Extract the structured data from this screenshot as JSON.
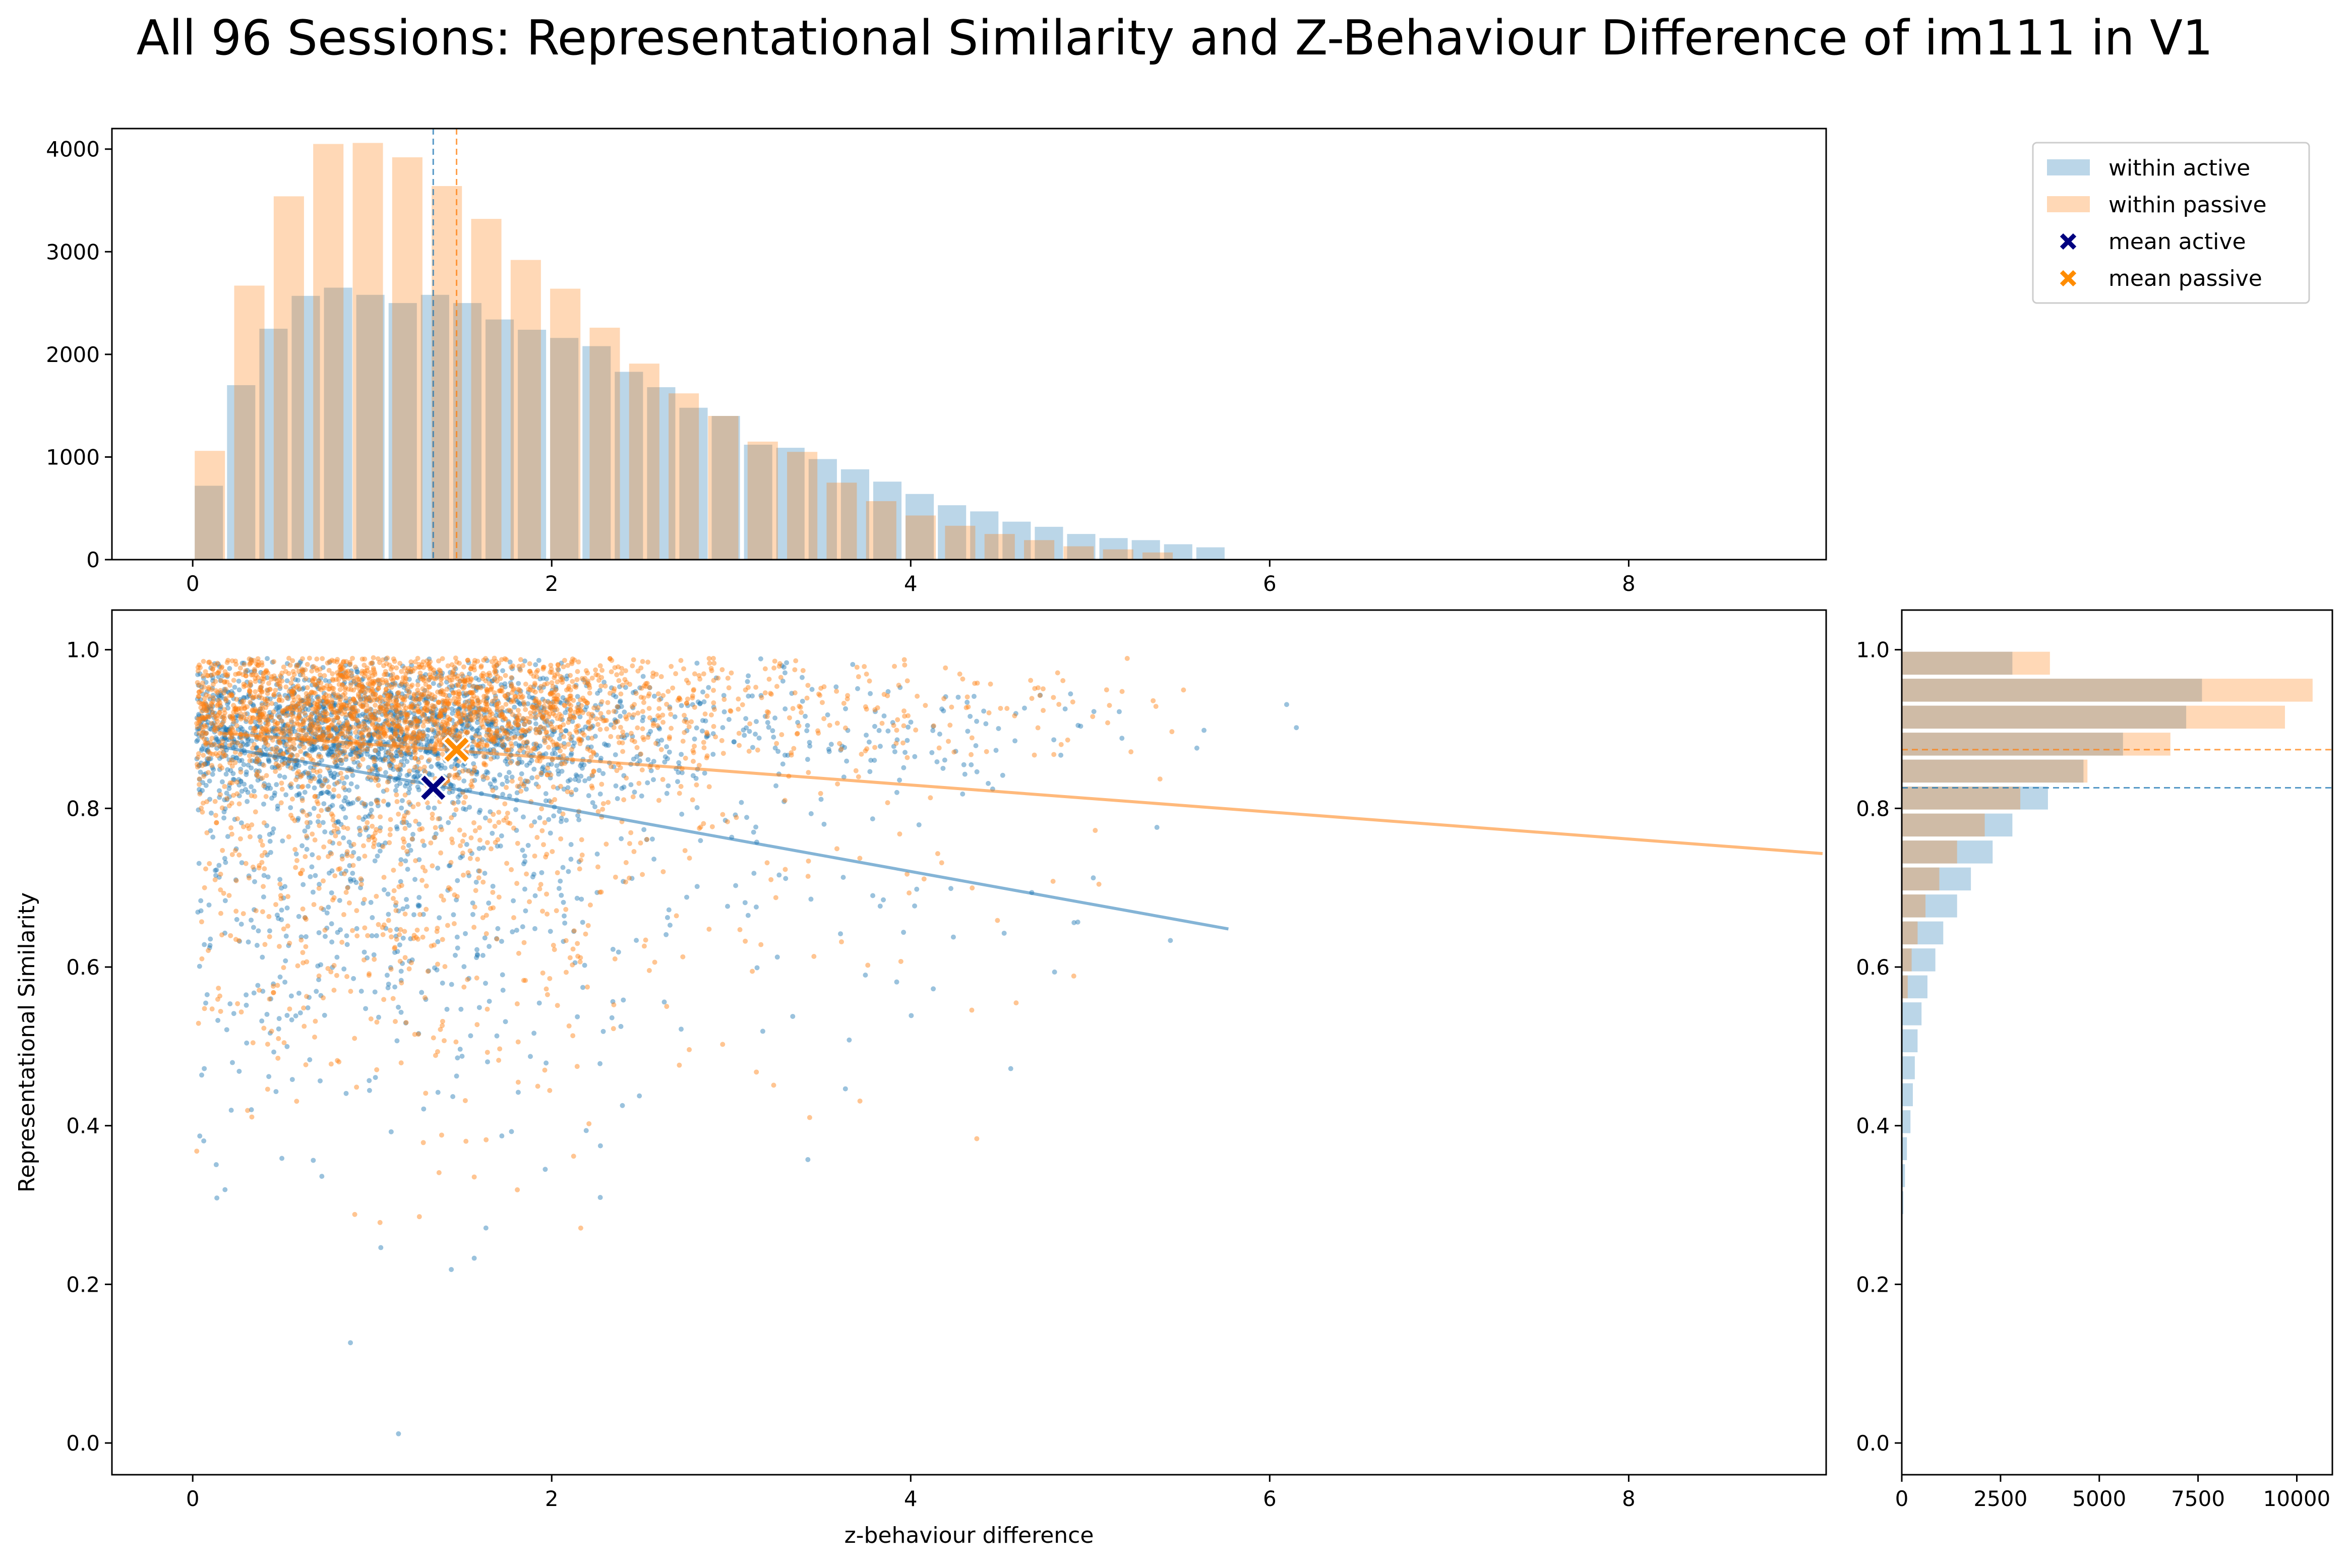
{
  "figure": {
    "title": "All 96 Sessions: Representational Similarity and Z-Behaviour Difference of im111 in V1",
    "colors": {
      "active": "#1f77b4",
      "passive": "#ff7f0e",
      "mean_active_marker": "#000080",
      "mean_passive_marker": "#ff8c00"
    },
    "legend": {
      "placement": "top-right (outside plots)",
      "items": [
        {
          "label": "within active",
          "kind": "patch",
          "color": "#1f77b4"
        },
        {
          "label": "within passive",
          "kind": "patch",
          "color": "#ff7f0e"
        },
        {
          "label": "mean active",
          "kind": "x-marker",
          "color": "#000080"
        },
        {
          "label": "mean passive",
          "kind": "x-marker",
          "color": "#ff8c00"
        }
      ]
    }
  },
  "chart_data": [
    {
      "id": "top_histogram",
      "type": "bar",
      "description_axis": "z-behaviour difference (shared x axis)",
      "xlim": [
        -0.45,
        9.1
      ],
      "ylim": [
        0,
        4200
      ],
      "x_ticks": [
        0,
        2,
        4,
        6,
        8
      ],
      "y_ticks": [
        0,
        1000,
        2000,
        3000,
        4000
      ],
      "bin_width": 0.18,
      "series": [
        {
          "name": "within active",
          "color": "#1f77b4",
          "bin_starts": [
            0.0,
            0.18,
            0.36,
            0.54,
            0.72,
            0.9,
            1.08,
            1.26,
            1.44,
            1.62,
            1.8,
            1.98,
            2.16,
            2.34,
            2.52,
            2.7,
            2.88,
            3.06,
            3.24,
            3.42,
            3.6,
            3.78,
            3.96,
            4.14,
            4.32,
            4.5,
            4.68,
            4.86,
            5.04,
            5.22,
            5.4,
            5.58
          ],
          "values": [
            720,
            1700,
            2250,
            2570,
            2650,
            2580,
            2500,
            2580,
            2500,
            2340,
            2240,
            2160,
            2080,
            1830,
            1680,
            1480,
            1400,
            1120,
            1090,
            980,
            880,
            760,
            640,
            530,
            470,
            370,
            320,
            250,
            210,
            190,
            150,
            120
          ]
        },
        {
          "name": "within passive",
          "color": "#ff7f0e",
          "bin_starts": [
            0.0,
            0.22,
            0.44,
            0.66,
            0.88,
            1.1,
            1.32,
            1.54,
            1.76,
            1.98,
            2.2,
            2.42,
            2.64,
            2.86,
            3.08,
            3.3,
            3.52,
            3.74,
            3.96,
            4.18,
            4.4,
            4.62,
            4.84,
            5.06,
            5.28
          ],
          "values": [
            1060,
            2670,
            3540,
            4050,
            4060,
            3920,
            3640,
            3320,
            2920,
            2640,
            2260,
            1910,
            1620,
            1400,
            1150,
            1050,
            750,
            570,
            430,
            330,
            250,
            190,
            130,
            100,
            70
          ]
        }
      ],
      "mean_lines": [
        {
          "name": "mean active",
          "x": 1.34,
          "color": "#1f77b4"
        },
        {
          "name": "mean passive",
          "x": 1.47,
          "color": "#ff7f0e"
        }
      ]
    },
    {
      "id": "scatter",
      "type": "scatter",
      "xlabel": "z-behaviour difference",
      "ylabel": "Representational Similarity",
      "xlim": [
        -0.45,
        9.1
      ],
      "ylim": [
        -0.04,
        1.05
      ],
      "x_ticks": [
        0,
        2,
        4,
        6,
        8
      ],
      "y_ticks": [
        0.0,
        0.2,
        0.4,
        0.6,
        0.8,
        1.0
      ],
      "series": [
        {
          "name": "within active",
          "color": "#1f77b4",
          "points_note": "dense cloud, ~40k points",
          "cloud": {
            "x_mode": 1.0,
            "y_center": 0.9,
            "y_floor": -0.01
          }
        },
        {
          "name": "within passive",
          "color": "#ff7f0e",
          "points_note": "dense cloud, ~50k points",
          "cloud": {
            "x_mode": 1.1,
            "y_center": 0.93,
            "y_floor": 0.07
          }
        }
      ],
      "regression_lines": [
        {
          "name": "within active",
          "color": "#1f77b4",
          "x": [
            0.15,
            5.77
          ],
          "y": [
            0.878,
            0.648
          ]
        },
        {
          "name": "within passive",
          "color": "#ff7f0e",
          "x": [
            0.15,
            9.08
          ],
          "y": [
            0.895,
            0.743
          ]
        }
      ],
      "means": [
        {
          "name": "mean active",
          "x": 1.34,
          "y": 0.826,
          "color": "#000080"
        },
        {
          "name": "mean passive",
          "x": 1.47,
          "y": 0.874,
          "color": "#ff8c00"
        }
      ]
    },
    {
      "id": "right_histogram",
      "type": "bar",
      "orientation": "horizontal",
      "description_axis": "Representational Similarity (shared y axis)",
      "xlim": [
        0,
        10900
      ],
      "ylim": [
        -0.04,
        1.05
      ],
      "x_ticks": [
        0,
        2500,
        5000,
        7500,
        10000
      ],
      "y_ticks": [
        0.0,
        0.2,
        0.4,
        0.6,
        0.8,
        1.0
      ],
      "bin_height": 0.034,
      "series": [
        {
          "name": "within active",
          "color": "#1f77b4",
          "bin_starts": [
            0.966,
            0.932,
            0.898,
            0.864,
            0.83,
            0.796,
            0.762,
            0.728,
            0.694,
            0.66,
            0.626,
            0.592,
            0.558,
            0.524,
            0.49,
            0.456,
            0.422,
            0.388,
            0.354,
            0.32,
            0.286
          ],
          "values": [
            2800,
            7600,
            7200,
            5600,
            4600,
            3700,
            2800,
            2300,
            1750,
            1400,
            1050,
            850,
            650,
            500,
            400,
            330,
            280,
            220,
            130,
            80,
            40
          ]
        },
        {
          "name": "within passive",
          "color": "#ff7f0e",
          "bin_starts": [
            0.966,
            0.932,
            0.898,
            0.864,
            0.83,
            0.796,
            0.762,
            0.728,
            0.694,
            0.66,
            0.626,
            0.592,
            0.558
          ],
          "values": [
            3750,
            10400,
            9700,
            6800,
            4700,
            3000,
            2100,
            1400,
            950,
            600,
            400,
            250,
            150
          ]
        }
      ],
      "mean_lines": [
        {
          "name": "mean active",
          "y": 0.826,
          "color": "#1f77b4"
        },
        {
          "name": "mean passive",
          "y": 0.874,
          "color": "#ff7f0e"
        }
      ]
    }
  ]
}
